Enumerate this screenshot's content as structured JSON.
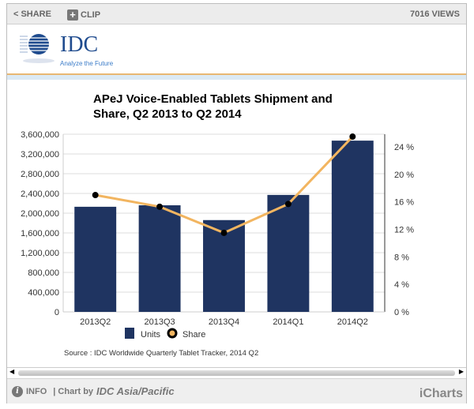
{
  "toolbar": {
    "share": "SHARE",
    "clip": "CLIP",
    "views": "7016 VIEWS"
  },
  "logo": {
    "name": "IDC",
    "tagline": "Analyze the Future"
  },
  "footer": {
    "info": "INFO",
    "chart_by": "| Chart by",
    "author": "IDC Asia/Pacific",
    "brand": "iCharts"
  },
  "colors": {
    "bar": "#1f3461",
    "line": "#f2b560",
    "marker": "#000000"
  },
  "chart_data": {
    "type": "bar+line",
    "title": [
      "APeJ Voice-Enabled Tablets Shipment and",
      "Share, Q2 2013 to Q2 2014"
    ],
    "categories": [
      "2013Q2",
      "2013Q3",
      "2013Q4",
      "2014Q1",
      "2014Q2"
    ],
    "series": [
      {
        "name": "Units",
        "type": "bar",
        "axis": "left",
        "values": [
          2130000,
          2160000,
          1860000,
          2370000,
          3470000
        ]
      },
      {
        "name": "Share",
        "type": "line",
        "axis": "right",
        "values": [
          17.0,
          15.3,
          11.5,
          15.7,
          25.5
        ]
      }
    ],
    "left_axis": {
      "min": 0,
      "max": 3600000,
      "ticks": [
        "0",
        "400,000",
        "800,000",
        "1,200,000",
        "1,600,000",
        "2,000,000",
        "2,400,000",
        "2,800,000",
        "3,200,000",
        "3,600,000"
      ]
    },
    "right_axis": {
      "min": 0,
      "max": 25.85,
      "ticks": [
        "0 %",
        "4 %",
        "8 %",
        "12 %",
        "16 %",
        "20 %",
        "24 %"
      ]
    },
    "source": "Source : IDC Worldwide Quarterly Tablet Tracker, 2014 Q2",
    "grid": true,
    "legend": "bottom-center"
  }
}
